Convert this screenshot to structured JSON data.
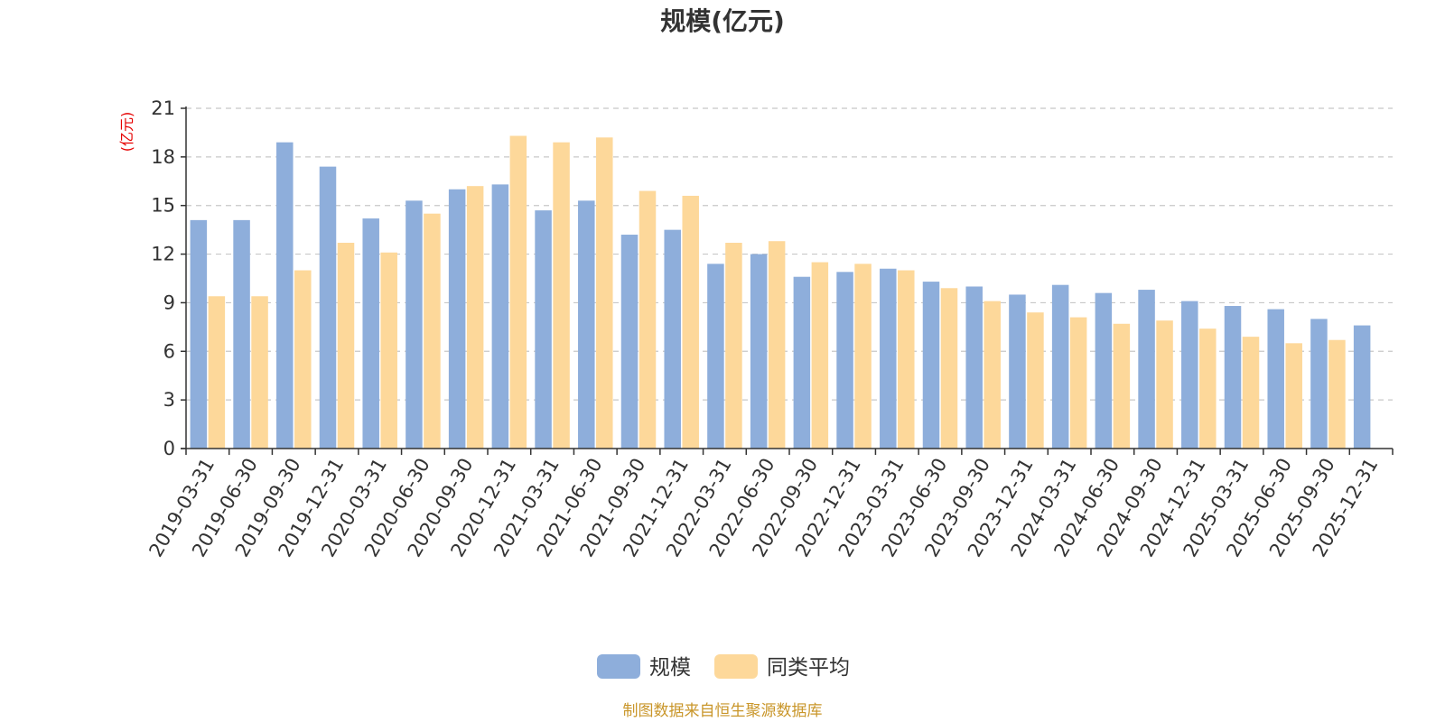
{
  "chart_data": {
    "type": "bar",
    "title": "规模(亿元)",
    "ylabel": "(亿元)",
    "xlabel": "",
    "ylim": [
      0,
      21
    ],
    "yticks": [
      0,
      3,
      6,
      9,
      12,
      15,
      18,
      21
    ],
    "grid": true,
    "legend_position": "bottom-center",
    "categories": [
      "2019-03-31",
      "2019-06-30",
      "2019-09-30",
      "2019-12-31",
      "2020-03-31",
      "2020-06-30",
      "2020-09-30",
      "2020-12-31",
      "2021-03-31",
      "2021-06-30",
      "2021-09-30",
      "2021-12-31",
      "2022-03-31",
      "2022-06-30",
      "2022-09-30",
      "2022-12-31",
      "2023-03-31",
      "2023-06-30",
      "2023-09-30",
      "2023-12-31",
      "2024-03-31",
      "2024-06-30",
      "2024-09-30",
      "2024-12-31",
      "2025-03-31",
      "2025-06-30",
      "2025-09-30",
      "2025-12-31"
    ],
    "series": [
      {
        "name": "规模",
        "color": "#8eaedb",
        "values": [
          14.1,
          14.1,
          18.9,
          17.4,
          14.2,
          15.3,
          16.0,
          16.3,
          14.7,
          15.3,
          13.2,
          13.5,
          11.4,
          12.0,
          10.6,
          10.9,
          11.1,
          10.3,
          10.0,
          9.5,
          10.1,
          9.6,
          9.8,
          9.1,
          8.8,
          8.6,
          8.0,
          7.6
        ]
      },
      {
        "name": "同类平均",
        "color": "#fdd89a",
        "values": [
          9.4,
          9.4,
          11.0,
          12.7,
          12.1,
          14.5,
          16.2,
          19.3,
          18.9,
          19.2,
          15.9,
          15.6,
          12.7,
          12.8,
          11.5,
          11.4,
          11.0,
          9.9,
          9.1,
          8.4,
          8.1,
          7.7,
          7.9,
          7.4,
          6.9,
          6.5,
          6.7,
          null
        ]
      }
    ]
  },
  "source": "制图数据来自恒生聚源数据库"
}
